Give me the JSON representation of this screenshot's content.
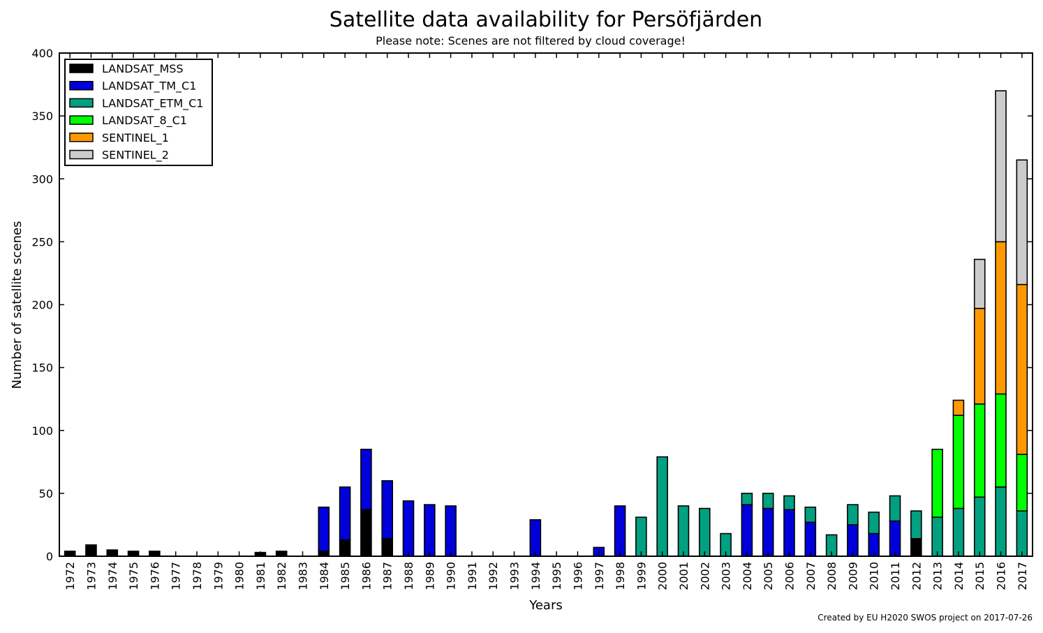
{
  "chart_data": {
    "type": "bar",
    "stacked": true,
    "title": "Satellite data availability for Persöfjärden",
    "subtitle": "Please note: Scenes are not filtered by cloud coverage!",
    "xlabel": "Years",
    "ylabel": "Number of satellite scenes",
    "footer": "Created by EU H2020 SWOS project on 2017-07-26",
    "ylim": [
      0,
      400
    ],
    "yticks": [
      0,
      50,
      100,
      150,
      200,
      250,
      300,
      350,
      400
    ],
    "grid": false,
    "legend_position": "top-left",
    "categories": [
      "1972",
      "1973",
      "1974",
      "1975",
      "1976",
      "1977",
      "1978",
      "1979",
      "1980",
      "1981",
      "1982",
      "1983",
      "1984",
      "1985",
      "1986",
      "1987",
      "1988",
      "1989",
      "1990",
      "1991",
      "1992",
      "1993",
      "1994",
      "1995",
      "1996",
      "1997",
      "1998",
      "1999",
      "2000",
      "2001",
      "2002",
      "2003",
      "2004",
      "2005",
      "2006",
      "2007",
      "2008",
      "2009",
      "2010",
      "2011",
      "2012",
      "2013",
      "2014",
      "2015",
      "2016",
      "2017"
    ],
    "series": [
      {
        "name": "LANDSAT_MSS",
        "color": "#000000",
        "values": [
          4,
          9,
          5,
          4,
          4,
          0,
          0,
          0,
          0,
          3,
          4,
          0,
          4,
          13,
          37,
          14,
          0,
          0,
          0,
          0,
          0,
          0,
          0,
          0,
          0,
          0,
          0,
          0,
          0,
          0,
          0,
          0,
          0,
          0,
          0,
          0,
          0,
          0,
          0,
          0,
          14,
          0,
          0,
          0,
          0,
          0
        ]
      },
      {
        "name": "LANDSAT_TM_C1",
        "color": "#0000dd",
        "values": [
          0,
          0,
          0,
          0,
          0,
          0,
          0,
          0,
          0,
          0,
          0,
          0,
          35,
          42,
          48,
          46,
          44,
          41,
          40,
          0,
          0,
          0,
          29,
          0,
          0,
          7,
          40,
          0,
          0,
          0,
          0,
          0,
          41,
          38,
          37,
          27,
          0,
          25,
          18,
          28,
          0,
          0,
          0,
          0,
          0,
          0
        ]
      },
      {
        "name": "LANDSAT_ETM_C1",
        "color": "#00a080",
        "values": [
          0,
          0,
          0,
          0,
          0,
          0,
          0,
          0,
          0,
          0,
          0,
          0,
          0,
          0,
          0,
          0,
          0,
          0,
          0,
          0,
          0,
          0,
          0,
          0,
          0,
          0,
          0,
          31,
          79,
          40,
          38,
          18,
          9,
          12,
          11,
          12,
          17,
          16,
          17,
          20,
          22,
          31,
          38,
          47,
          55,
          36
        ]
      },
      {
        "name": "LANDSAT_8_C1",
        "color": "#00ff00",
        "values": [
          0,
          0,
          0,
          0,
          0,
          0,
          0,
          0,
          0,
          0,
          0,
          0,
          0,
          0,
          0,
          0,
          0,
          0,
          0,
          0,
          0,
          0,
          0,
          0,
          0,
          0,
          0,
          0,
          0,
          0,
          0,
          0,
          0,
          0,
          0,
          0,
          0,
          0,
          0,
          0,
          0,
          54,
          74,
          74,
          74,
          45
        ]
      },
      {
        "name": "SENTINEL_1",
        "color": "#ff9900",
        "values": [
          0,
          0,
          0,
          0,
          0,
          0,
          0,
          0,
          0,
          0,
          0,
          0,
          0,
          0,
          0,
          0,
          0,
          0,
          0,
          0,
          0,
          0,
          0,
          0,
          0,
          0,
          0,
          0,
          0,
          0,
          0,
          0,
          0,
          0,
          0,
          0,
          0,
          0,
          0,
          0,
          0,
          0,
          12,
          76,
          121,
          135
        ]
      },
      {
        "name": "SENTINEL_2",
        "color": "#cccccc",
        "values": [
          0,
          0,
          0,
          0,
          0,
          0,
          0,
          0,
          0,
          0,
          0,
          0,
          0,
          0,
          0,
          0,
          0,
          0,
          0,
          0,
          0,
          0,
          0,
          0,
          0,
          0,
          0,
          0,
          0,
          0,
          0,
          0,
          0,
          0,
          0,
          0,
          0,
          0,
          0,
          0,
          0,
          0,
          0,
          39,
          120,
          99
        ]
      }
    ]
  }
}
